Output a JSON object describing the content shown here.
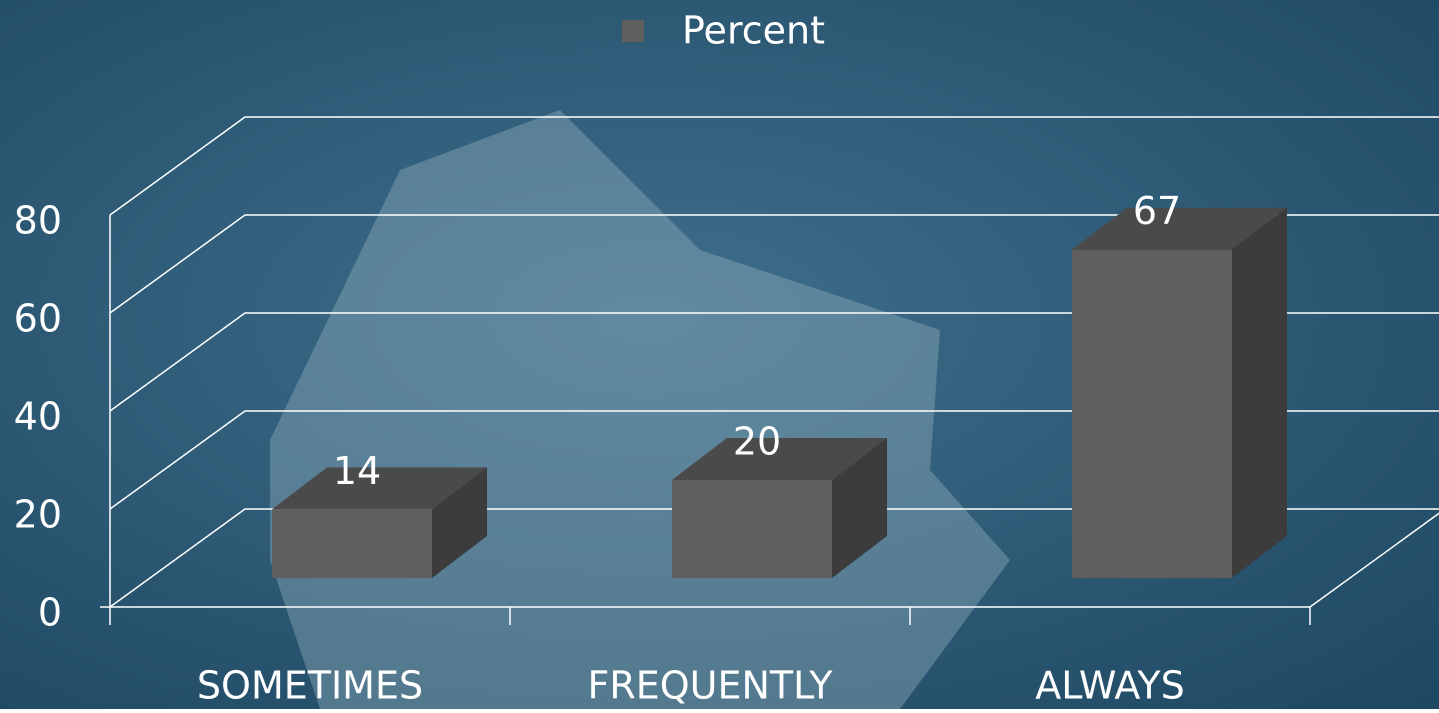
{
  "chart_data": {
    "type": "bar3d",
    "categories": [
      "SOMETIMES",
      "FREQUENTLY",
      "ALWAYS"
    ],
    "series": [
      {
        "name": "Percent",
        "color": "#5f5f5f",
        "values": [
          14,
          20,
          67
        ]
      }
    ],
    "ylim": [
      0,
      80
    ],
    "yticks": [
      0,
      20,
      40,
      60,
      80
    ],
    "grid": true,
    "legend": "top"
  }
}
